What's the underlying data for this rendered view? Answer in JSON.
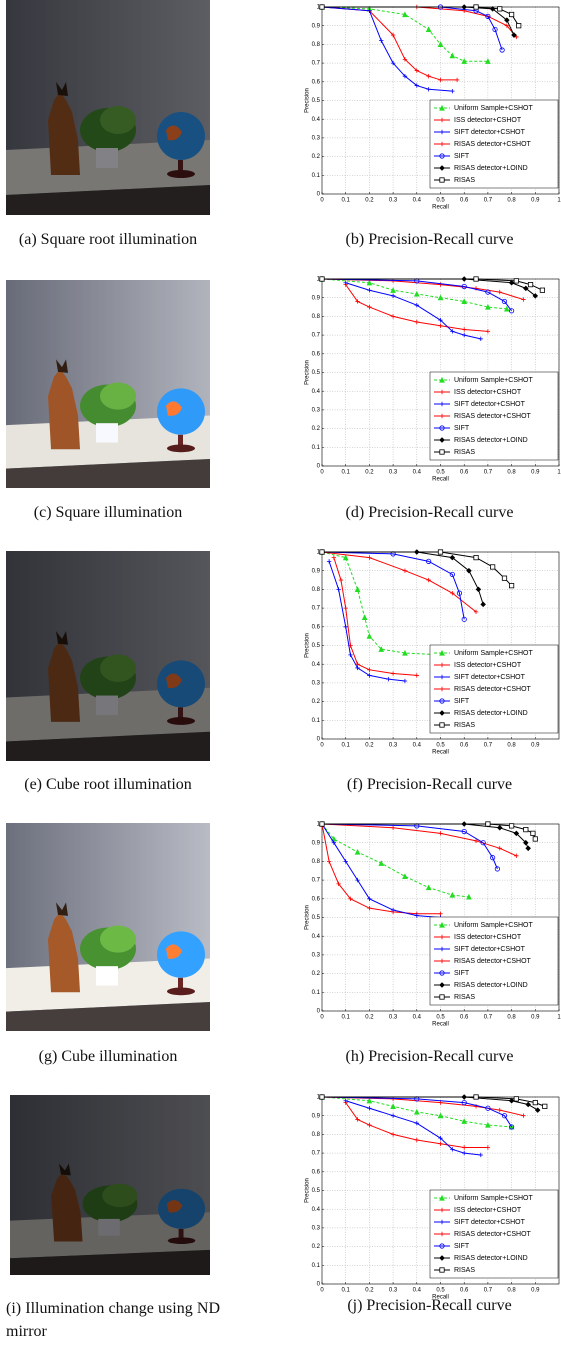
{
  "panels": [
    {
      "photo_caption": "(a) Square root illumination",
      "chart_caption": "(b) Precision-Recall curve"
    },
    {
      "photo_caption": "(c) Square illumination",
      "chart_caption": "(d) Precision-Recall curve"
    },
    {
      "photo_caption": "(e) Cube root illumination",
      "chart_caption": "(f) Precision-Recall curve"
    },
    {
      "photo_caption": "(g) Cube illumination",
      "chart_caption": "(h) Precision-Recall curve"
    },
    {
      "photo_caption": "(i) Illumination change using ND mirror",
      "chart_caption": "(j) Precision-Recall curve"
    }
  ],
  "chart_data": [
    {
      "type": "line",
      "xlabel": "Recall",
      "ylabel": "Precision",
      "xlim": [
        0,
        1
      ],
      "ylim": [
        0,
        1
      ],
      "xticks": [
        0,
        0.1,
        0.2,
        0.3,
        0.4,
        0.5,
        0.6,
        0.7,
        0.8,
        0.9,
        1
      ],
      "yticks": [
        0,
        0.1,
        0.2,
        0.3,
        0.4,
        0.5,
        0.6,
        0.7,
        0.8,
        0.9,
        1
      ],
      "grid": true,
      "legend": "lower right",
      "series": [
        {
          "name": "Uniform Sample+CSHOT",
          "color": "#22dd22",
          "marker": "triangle",
          "linestyle": "dashed",
          "x": [
            0,
            0.2,
            0.35,
            0.45,
            0.5,
            0.55,
            0.6,
            0.7
          ],
          "values": [
            1,
            0.99,
            0.96,
            0.88,
            0.8,
            0.74,
            0.71,
            0.71
          ]
        },
        {
          "name": "ISS detector+CSHOT",
          "color": "#ff0000",
          "marker": "plus",
          "linestyle": "solid",
          "x": [
            0,
            0.2,
            0.3,
            0.35,
            0.4,
            0.45,
            0.5,
            0.57
          ],
          "values": [
            1,
            0.98,
            0.85,
            0.72,
            0.66,
            0.63,
            0.61,
            0.61
          ]
        },
        {
          "name": "SIFT detector+CSHOT",
          "color": "#0000ff",
          "marker": "plus",
          "linestyle": "solid",
          "x": [
            0,
            0.2,
            0.25,
            0.3,
            0.35,
            0.4,
            0.45,
            0.55
          ],
          "values": [
            1,
            0.98,
            0.82,
            0.7,
            0.63,
            0.58,
            0.56,
            0.55
          ]
        },
        {
          "name": "RISAS detector+CSHOT",
          "color": "#ff0000",
          "marker": "plus",
          "linestyle": "solid",
          "x": [
            0,
            0.4,
            0.6,
            0.7,
            0.78,
            0.82
          ],
          "values": [
            1,
            1,
            0.98,
            0.95,
            0.9,
            0.84
          ]
        },
        {
          "name": "SIFT",
          "color": "#0000ff",
          "marker": "circle",
          "linestyle": "solid",
          "x": [
            0,
            0.5,
            0.65,
            0.7,
            0.73,
            0.76
          ],
          "values": [
            1,
            1,
            0.98,
            0.95,
            0.88,
            0.77
          ]
        },
        {
          "name": "RISAS detector+LOIND",
          "color": "#000000",
          "marker": "diamond",
          "linestyle": "solid",
          "x": [
            0,
            0.6,
            0.72,
            0.78,
            0.81
          ],
          "values": [
            1,
            1,
            0.99,
            0.93,
            0.85
          ]
        },
        {
          "name": "RISAS",
          "color": "#000000",
          "marker": "square",
          "linestyle": "solid",
          "x": [
            0,
            0.65,
            0.75,
            0.8,
            0.83
          ],
          "values": [
            1,
            1,
            0.99,
            0.96,
            0.9
          ]
        }
      ]
    },
    {
      "type": "line",
      "xlabel": "Recall",
      "ylabel": "Precision",
      "xlim": [
        0,
        1
      ],
      "ylim": [
        0,
        1
      ],
      "xticks": [
        0,
        0.1,
        0.2,
        0.3,
        0.4,
        0.5,
        0.6,
        0.7,
        0.8,
        0.9,
        1
      ],
      "yticks": [
        0,
        0.1,
        0.2,
        0.3,
        0.4,
        0.5,
        0.6,
        0.7,
        0.8,
        0.9,
        1
      ],
      "grid": true,
      "legend": "lower right",
      "series": [
        {
          "name": "Uniform Sample+CSHOT",
          "color": "#22dd22",
          "marker": "triangle",
          "linestyle": "dashed",
          "x": [
            0,
            0.2,
            0.3,
            0.4,
            0.5,
            0.6,
            0.7,
            0.78
          ],
          "values": [
            1,
            0.98,
            0.94,
            0.92,
            0.9,
            0.88,
            0.85,
            0.84
          ]
        },
        {
          "name": "ISS detector+CSHOT",
          "color": "#ff0000",
          "marker": "plus",
          "linestyle": "solid",
          "x": [
            0.1,
            0.15,
            0.2,
            0.3,
            0.4,
            0.5,
            0.6,
            0.7
          ],
          "values": [
            0.97,
            0.88,
            0.85,
            0.8,
            0.77,
            0.75,
            0.73,
            0.72
          ]
        },
        {
          "name": "SIFT detector+CSHOT",
          "color": "#0000ff",
          "marker": "plus",
          "linestyle": "solid",
          "x": [
            0.1,
            0.2,
            0.3,
            0.4,
            0.5,
            0.55,
            0.6,
            0.67
          ],
          "values": [
            0.98,
            0.94,
            0.91,
            0.86,
            0.78,
            0.72,
            0.7,
            0.68
          ]
        },
        {
          "name": "RISAS detector+CSHOT",
          "color": "#ff0000",
          "marker": "plus",
          "linestyle": "solid",
          "x": [
            0,
            0.3,
            0.5,
            0.65,
            0.75,
            0.85
          ],
          "values": [
            1,
            0.99,
            0.97,
            0.95,
            0.93,
            0.89
          ]
        },
        {
          "name": "SIFT",
          "color": "#0000ff",
          "marker": "circle",
          "linestyle": "solid",
          "x": [
            0,
            0.4,
            0.6,
            0.7,
            0.77,
            0.8
          ],
          "values": [
            1,
            0.99,
            0.96,
            0.93,
            0.88,
            0.83
          ]
        },
        {
          "name": "RISAS detector+LOIND",
          "color": "#000000",
          "marker": "diamond",
          "linestyle": "solid",
          "x": [
            0,
            0.6,
            0.8,
            0.86,
            0.9
          ],
          "values": [
            1,
            1,
            0.98,
            0.95,
            0.91
          ]
        },
        {
          "name": "RISAS",
          "color": "#000000",
          "marker": "square",
          "linestyle": "solid",
          "x": [
            0,
            0.65,
            0.82,
            0.88,
            0.93
          ],
          "values": [
            1,
            1,
            0.99,
            0.97,
            0.94
          ]
        }
      ]
    },
    {
      "type": "line",
      "xlabel": "Recall",
      "ylabel": "Precision",
      "xlim": [
        0,
        1
      ],
      "ylim": [
        0,
        1
      ],
      "xticks": [
        0,
        0.1,
        0.2,
        0.3,
        0.4,
        0.5,
        0.6,
        0.7,
        0.8,
        0.9
      ],
      "yticks": [
        0,
        0.1,
        0.2,
        0.3,
        0.4,
        0.5,
        0.6,
        0.7,
        0.8,
        0.9,
        1
      ],
      "grid": true,
      "legend": "lower right",
      "series": [
        {
          "name": "Uniform Sample+CSHOT",
          "color": "#22dd22",
          "marker": "triangle",
          "linestyle": "dashed",
          "x": [
            0,
            0.1,
            0.15,
            0.18,
            0.2,
            0.25,
            0.35,
            0.5
          ],
          "values": [
            1,
            0.97,
            0.8,
            0.65,
            0.55,
            0.48,
            0.46,
            0.45
          ]
        },
        {
          "name": "ISS detector+CSHOT",
          "color": "#ff0000",
          "marker": "plus",
          "linestyle": "solid",
          "x": [
            0.05,
            0.08,
            0.1,
            0.12,
            0.15,
            0.2,
            0.3,
            0.4
          ],
          "values": [
            0.97,
            0.85,
            0.7,
            0.5,
            0.4,
            0.37,
            0.35,
            0.34
          ]
        },
        {
          "name": "SIFT detector+CSHOT",
          "color": "#0000ff",
          "marker": "plus",
          "linestyle": "solid",
          "x": [
            0.03,
            0.07,
            0.1,
            0.12,
            0.15,
            0.2,
            0.28,
            0.35
          ],
          "values": [
            0.95,
            0.8,
            0.6,
            0.45,
            0.38,
            0.34,
            0.32,
            0.31
          ]
        },
        {
          "name": "RISAS detector+CSHOT",
          "color": "#ff0000",
          "marker": "plus",
          "linestyle": "solid",
          "x": [
            0,
            0.2,
            0.35,
            0.45,
            0.55,
            0.65
          ],
          "values": [
            1,
            0.97,
            0.9,
            0.85,
            0.78,
            0.68
          ]
        },
        {
          "name": "SIFT",
          "color": "#0000ff",
          "marker": "circle",
          "linestyle": "solid",
          "x": [
            0,
            0.3,
            0.45,
            0.55,
            0.58,
            0.6
          ],
          "values": [
            1,
            0.99,
            0.95,
            0.88,
            0.78,
            0.64
          ]
        },
        {
          "name": "RISAS detector+LOIND",
          "color": "#000000",
          "marker": "diamond",
          "linestyle": "solid",
          "x": [
            0,
            0.4,
            0.55,
            0.62,
            0.66,
            0.68
          ],
          "values": [
            1,
            1,
            0.97,
            0.9,
            0.8,
            0.72
          ]
        },
        {
          "name": "RISAS",
          "color": "#000000",
          "marker": "square",
          "linestyle": "solid",
          "x": [
            0,
            0.5,
            0.65,
            0.72,
            0.77,
            0.8
          ],
          "values": [
            1,
            1,
            0.97,
            0.92,
            0.86,
            0.82
          ]
        }
      ]
    },
    {
      "type": "line",
      "xlabel": "Recall",
      "ylabel": "Precision",
      "xlim": [
        0,
        1
      ],
      "ylim": [
        0,
        1
      ],
      "xticks": [
        0,
        0.1,
        0.2,
        0.3,
        0.4,
        0.5,
        0.6,
        0.7,
        0.8,
        0.9,
        1
      ],
      "yticks": [
        0,
        0.1,
        0.2,
        0.3,
        0.4,
        0.5,
        0.6,
        0.7,
        0.8,
        0.9,
        1
      ],
      "grid": true,
      "legend": "lower right",
      "series": [
        {
          "name": "Uniform Sample+CSHOT",
          "color": "#22dd22",
          "marker": "triangle",
          "linestyle": "dashed",
          "x": [
            0,
            0.05,
            0.15,
            0.25,
            0.35,
            0.45,
            0.55,
            0.62
          ],
          "values": [
            1,
            0.92,
            0.85,
            0.79,
            0.72,
            0.66,
            0.62,
            0.61
          ]
        },
        {
          "name": "ISS detector+CSHOT",
          "color": "#ff0000",
          "marker": "plus",
          "linestyle": "solid",
          "x": [
            0,
            0.03,
            0.07,
            0.12,
            0.2,
            0.3,
            0.4,
            0.5
          ],
          "values": [
            1,
            0.8,
            0.68,
            0.6,
            0.55,
            0.53,
            0.52,
            0.52
          ]
        },
        {
          "name": "SIFT detector+CSHOT",
          "color": "#0000ff",
          "marker": "plus",
          "linestyle": "solid",
          "x": [
            0,
            0.05,
            0.1,
            0.15,
            0.2,
            0.3,
            0.4,
            0.5
          ],
          "values": [
            1,
            0.9,
            0.8,
            0.7,
            0.6,
            0.54,
            0.51,
            0.5
          ]
        },
        {
          "name": "RISAS detector+CSHOT",
          "color": "#ff0000",
          "marker": "plus",
          "linestyle": "solid",
          "x": [
            0,
            0.3,
            0.5,
            0.65,
            0.75,
            0.82
          ],
          "values": [
            1,
            0.98,
            0.95,
            0.91,
            0.87,
            0.83
          ]
        },
        {
          "name": "SIFT",
          "color": "#0000ff",
          "marker": "circle",
          "linestyle": "solid",
          "x": [
            0,
            0.4,
            0.6,
            0.68,
            0.72,
            0.74
          ],
          "values": [
            1,
            0.99,
            0.96,
            0.9,
            0.82,
            0.76
          ]
        },
        {
          "name": "RISAS detector+LOIND",
          "color": "#000000",
          "marker": "diamond",
          "linestyle": "solid",
          "x": [
            0,
            0.6,
            0.75,
            0.82,
            0.86,
            0.87
          ],
          "values": [
            1,
            1,
            0.98,
            0.95,
            0.9,
            0.87
          ]
        },
        {
          "name": "RISAS",
          "color": "#000000",
          "marker": "square",
          "linestyle": "solid",
          "x": [
            0,
            0.7,
            0.8,
            0.86,
            0.89,
            0.9
          ],
          "values": [
            1,
            1,
            0.99,
            0.97,
            0.95,
            0.92
          ]
        }
      ]
    },
    {
      "type": "line",
      "xlabel": "Recall",
      "ylabel": "Precision",
      "xlim": [
        0,
        1
      ],
      "ylim": [
        0,
        1
      ],
      "xticks": [
        0,
        0.1,
        0.2,
        0.3,
        0.4,
        0.5,
        0.6,
        0.7,
        0.8,
        0.9
      ],
      "yticks": [
        0,
        0.1,
        0.2,
        0.3,
        0.4,
        0.5,
        0.6,
        0.7,
        0.8,
        0.9,
        1
      ],
      "grid": true,
      "legend": "lower right",
      "series": [
        {
          "name": "Uniform Sample+CSHOT",
          "color": "#22dd22",
          "marker": "triangle",
          "linestyle": "dashed",
          "x": [
            0,
            0.2,
            0.3,
            0.4,
            0.5,
            0.6,
            0.7,
            0.8
          ],
          "values": [
            1,
            0.98,
            0.95,
            0.92,
            0.9,
            0.87,
            0.85,
            0.84
          ]
        },
        {
          "name": "ISS detector+CSHOT",
          "color": "#ff0000",
          "marker": "plus",
          "linestyle": "solid",
          "x": [
            0.1,
            0.15,
            0.2,
            0.3,
            0.4,
            0.5,
            0.6,
            0.7
          ],
          "values": [
            0.97,
            0.88,
            0.85,
            0.8,
            0.77,
            0.75,
            0.73,
            0.73
          ]
        },
        {
          "name": "SIFT detector+CSHOT",
          "color": "#0000ff",
          "marker": "plus",
          "linestyle": "solid",
          "x": [
            0.1,
            0.2,
            0.3,
            0.4,
            0.5,
            0.55,
            0.6,
            0.67
          ],
          "values": [
            0.98,
            0.94,
            0.9,
            0.86,
            0.78,
            0.72,
            0.7,
            0.69
          ]
        },
        {
          "name": "RISAS detector+CSHOT",
          "color": "#ff0000",
          "marker": "plus",
          "linestyle": "solid",
          "x": [
            0,
            0.3,
            0.5,
            0.65,
            0.75,
            0.85
          ],
          "values": [
            1,
            0.99,
            0.97,
            0.95,
            0.93,
            0.9
          ]
        },
        {
          "name": "SIFT",
          "color": "#0000ff",
          "marker": "circle",
          "linestyle": "solid",
          "x": [
            0,
            0.4,
            0.6,
            0.7,
            0.77,
            0.8
          ],
          "values": [
            1,
            0.99,
            0.97,
            0.94,
            0.9,
            0.84
          ]
        },
        {
          "name": "RISAS detector+LOIND",
          "color": "#000000",
          "marker": "diamond",
          "linestyle": "solid",
          "x": [
            0,
            0.6,
            0.8,
            0.87,
            0.91
          ],
          "values": [
            1,
            1,
            0.98,
            0.96,
            0.93
          ]
        },
        {
          "name": "RISAS",
          "color": "#000000",
          "marker": "square",
          "linestyle": "solid",
          "x": [
            0,
            0.65,
            0.82,
            0.9,
            0.94
          ],
          "values": [
            1,
            1,
            0.99,
            0.97,
            0.95
          ]
        }
      ]
    }
  ]
}
